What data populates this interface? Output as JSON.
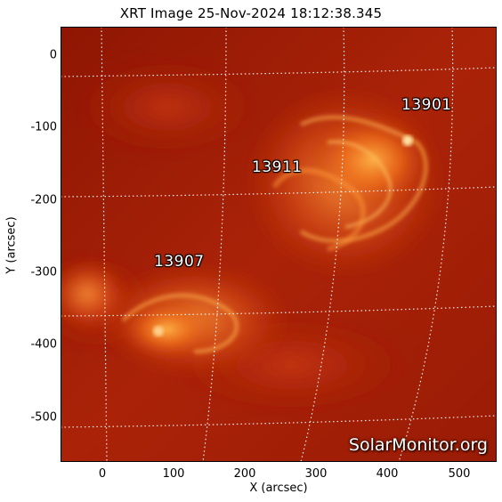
{
  "title": "XRT Image 25-Nov-2024 18:12:38.345",
  "axes": {
    "xlabel": "X (arcsec)",
    "ylabel": "Y (arcsec)",
    "xlim": [
      -60,
      550
    ],
    "ylim": [
      -560,
      40
    ],
    "xticks": [
      0,
      100,
      200,
      300,
      400,
      500
    ],
    "yticks": [
      0,
      -100,
      -200,
      -300,
      -400,
      -500
    ]
  },
  "active_regions": [
    {
      "label": "13901",
      "x": 445,
      "y": -70
    },
    {
      "label": "13911",
      "x": 210,
      "y": -155
    },
    {
      "label": "13907",
      "x": 70,
      "y": -290
    }
  ],
  "watermark": "SolarMonitor.org",
  "colors": {
    "background": "#a21a05",
    "bright": "#ff9a3a",
    "grid": "#ffffff"
  }
}
